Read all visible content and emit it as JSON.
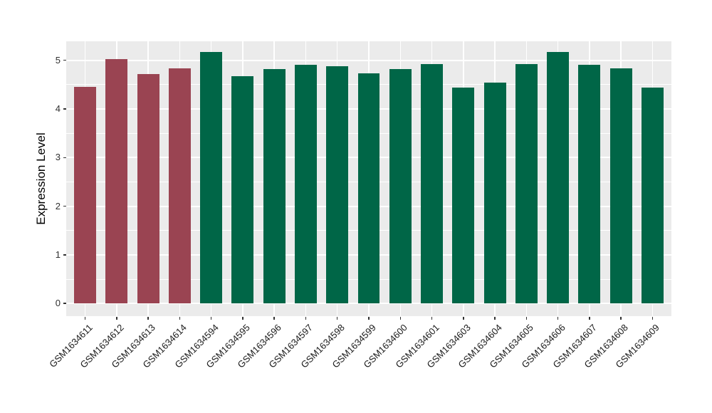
{
  "figure": {
    "background": "#FFFFFF",
    "panel_background": "#EBEBEB",
    "grid_color": "#FFFFFF",
    "tick_mark_color": "#333333",
    "axis_text_color": "#1A1A1A",
    "axis_title_color": "#000000"
  },
  "chart_data": {
    "type": "bar",
    "title": "",
    "xlabel": "",
    "ylabel": "Expression Level",
    "categories": [
      "GSM1634611",
      "GSM1634612",
      "GSM1634613",
      "GSM1634614",
      "GSM1634594",
      "GSM1634595",
      "GSM1634596",
      "GSM1634597",
      "GSM1634598",
      "GSM1634599",
      "GSM1634600",
      "GSM1634601",
      "GSM1634603",
      "GSM1634604",
      "GSM1634605",
      "GSM1634606",
      "GSM1634607",
      "GSM1634608",
      "GSM1634609"
    ],
    "values": [
      4.45,
      5.03,
      4.72,
      4.83,
      5.17,
      4.67,
      4.82,
      4.9,
      4.88,
      4.73,
      4.82,
      4.92,
      4.44,
      4.54,
      4.92,
      5.17,
      4.9,
      4.83,
      4.44
    ],
    "bar_groups": [
      "groupA",
      "groupA",
      "groupA",
      "groupA",
      "groupB",
      "groupB",
      "groupB",
      "groupB",
      "groupB",
      "groupB",
      "groupB",
      "groupB",
      "groupB",
      "groupB",
      "groupB",
      "groupB",
      "groupB",
      "groupB",
      "groupB"
    ],
    "group_colors": {
      "groupA": "#9A4452",
      "groupB": "#006647"
    },
    "yticks": [
      0,
      1,
      2,
      3,
      4,
      5
    ],
    "minor_yticks": [
      0.5,
      1.5,
      2.5,
      3.5,
      4.5
    ],
    "ylim": [
      -0.26,
      5.39
    ],
    "grid": true,
    "legend": "none",
    "x_label_rotation_deg": 45
  }
}
